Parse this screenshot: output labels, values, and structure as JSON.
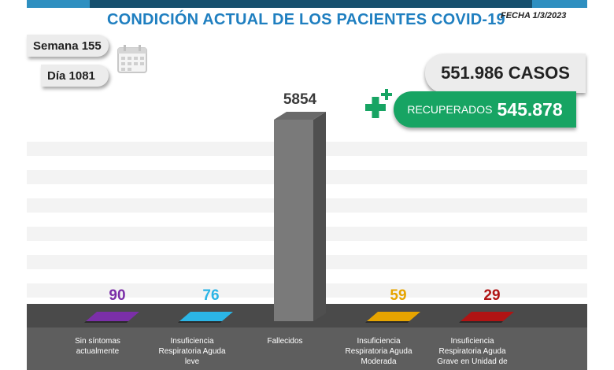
{
  "header": {
    "title": "CONDICIÓN ACTUAL DE LOS PACIENTES COVID-19",
    "fecha": "FECHA 1/3/2023"
  },
  "info": {
    "semana": "Semana 155",
    "dia": "Día 1081"
  },
  "summary": {
    "casos": "551.986 CASOS",
    "recuperados_label": "RECUPERADOS",
    "recuperados_value": "545.878"
  },
  "colors": {
    "title": "#1f7fc0",
    "recuperados": "#17a463",
    "bar_fallecidos": "#7a7a7a",
    "floor": "#4a4a4a"
  },
  "chart_data": {
    "type": "bar",
    "categories": [
      "Sin síntomas actualmente",
      "Insuficiencia Respiratoria Aguda leve",
      "Fallecidos",
      "Insuficiencia Respiratoria Aguda Moderada",
      "Insuficiencia Respiratoria Aguda Grave en Unidad de"
    ],
    "values": [
      90,
      76,
      5854,
      59,
      29
    ],
    "value_labels": [
      "90",
      "76",
      "5854",
      "59",
      "29"
    ],
    "colors": [
      "#7b2fa8",
      "#2bb5e6",
      "#7a7a7a",
      "#e6a400",
      "#b01414"
    ],
    "ylim": [
      0,
      5854
    ],
    "grid": true
  }
}
